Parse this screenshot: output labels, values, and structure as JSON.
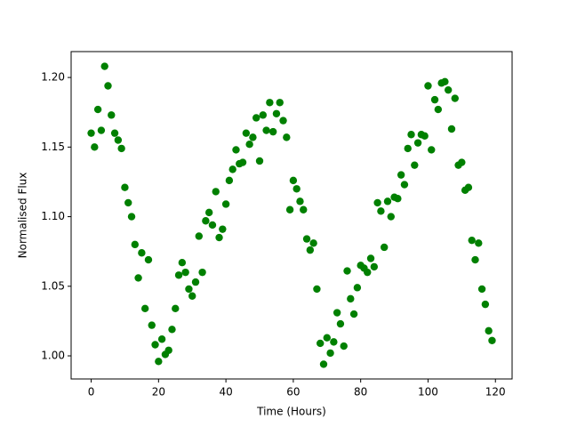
{
  "chart_data": {
    "type": "scatter",
    "xlabel": "Time (Hours)",
    "ylabel": "Normalised Flux",
    "color": "#008000",
    "x": [
      0,
      1,
      2,
      3,
      4,
      5,
      6,
      7,
      8,
      9,
      10,
      11,
      12,
      13,
      14,
      15,
      16,
      17,
      18,
      19,
      20,
      21,
      22,
      23,
      24,
      25,
      26,
      27,
      28,
      29,
      30,
      31,
      32,
      33,
      34,
      35,
      36,
      37,
      38,
      39,
      40,
      41,
      42,
      43,
      44,
      45,
      46,
      47,
      48,
      49,
      50,
      51,
      52,
      53,
      54,
      55,
      56,
      57,
      58,
      59,
      60,
      61,
      62,
      63,
      64,
      65,
      66,
      67,
      68,
      69,
      70,
      71,
      72,
      73,
      74,
      75,
      76,
      77,
      78,
      79,
      80,
      81,
      82,
      83,
      84,
      85,
      86,
      87,
      88,
      89,
      90,
      91,
      92,
      93,
      94,
      95,
      96,
      97,
      98,
      99,
      100,
      101,
      102,
      103,
      104,
      105,
      106,
      107,
      108,
      109,
      110,
      111,
      112,
      113,
      114,
      115,
      116,
      117,
      118,
      119
    ],
    "values": [
      1.16,
      1.15,
      1.177,
      1.162,
      1.208,
      1.194,
      1.173,
      1.16,
      1.155,
      1.149,
      1.121,
      1.11,
      1.1,
      1.08,
      1.056,
      1.074,
      1.034,
      1.069,
      1.022,
      1.008,
      0.996,
      1.012,
      1.001,
      1.004,
      1.019,
      1.034,
      1.058,
      1.067,
      1.06,
      1.048,
      1.043,
      1.053,
      1.086,
      1.06,
      1.097,
      1.103,
      1.094,
      1.118,
      1.085,
      1.091,
      1.109,
      1.126,
      1.134,
      1.148,
      1.138,
      1.139,
      1.16,
      1.152,
      1.157,
      1.171,
      1.14,
      1.173,
      1.162,
      1.182,
      1.161,
      1.174,
      1.182,
      1.169,
      1.157,
      1.105,
      1.126,
      1.12,
      1.111,
      1.105,
      1.084,
      1.076,
      1.081,
      1.048,
      1.009,
      0.994,
      1.013,
      1.002,
      1.01,
      1.031,
      1.023,
      1.007,
      1.061,
      1.041,
      1.03,
      1.049,
      1.065,
      1.063,
      1.06,
      1.07,
      1.064,
      1.11,
      1.104,
      1.078,
      1.111,
      1.1,
      1.114,
      1.113,
      1.13,
      1.123,
      1.149,
      1.159,
      1.137,
      1.153,
      1.159,
      1.158,
      1.194,
      1.148,
      1.184,
      1.177,
      1.196,
      1.197,
      1.191,
      1.163,
      1.185,
      1.137,
      1.139,
      1.119,
      1.121,
      1.083,
      1.069,
      1.081,
      1.048,
      1.037,
      1.018,
      1.011
    ],
    "xlim": [
      -5.95,
      124.95
    ],
    "ylim": [
      0.9834,
      1.2186
    ],
    "xticks": [
      0,
      20,
      40,
      60,
      80,
      100,
      120
    ],
    "yticks": [
      {
        "value": 1.0,
        "label": "1.00"
      },
      1.05,
      {
        "value": 1.1,
        "label": "1.10"
      },
      1.15,
      {
        "value": 1.2,
        "label": "1.20"
      }
    ]
  }
}
